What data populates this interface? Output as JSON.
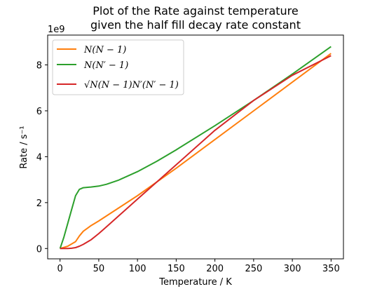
{
  "chart_data": {
    "type": "line",
    "title": "Plot of the Rate against temperature",
    "subtitle": "given the half fill decay rate constant",
    "xlabel": "Temperature / K",
    "ylabel": "Rate / s⁻¹",
    "y_scale_label": "1e9",
    "xlim": [
      -16,
      366
    ],
    "ylim": [
      -0.45,
      9.3
    ],
    "xticks": [
      0,
      50,
      100,
      150,
      200,
      250,
      300,
      350
    ],
    "xtick_labels": [
      "0",
      "50",
      "100",
      "150",
      "200",
      "250",
      "300",
      "350"
    ],
    "yticks": [
      0,
      2,
      4,
      6,
      8
    ],
    "ytick_labels": [
      "0",
      "2",
      "4",
      "6",
      "8"
    ],
    "grid": false,
    "legend_position": "upper-left",
    "series": [
      {
        "name": "N(N − 1)",
        "color": "#ff7f0e",
        "x": [
          0,
          10,
          20,
          25,
          30,
          40,
          50,
          75,
          100,
          150,
          200,
          250,
          300,
          350
        ],
        "y": [
          0,
          0.1,
          0.3,
          0.55,
          0.75,
          1.0,
          1.2,
          1.75,
          2.3,
          3.5,
          4.75,
          6.0,
          7.25,
          8.5
        ]
      },
      {
        "name": "N(N′ − 1)",
        "color": "#2ca02c",
        "x": [
          0,
          5,
          10,
          15,
          20,
          25,
          30,
          40,
          50,
          60,
          75,
          100,
          125,
          150,
          200,
          250,
          300,
          350
        ],
        "y": [
          0,
          0.5,
          1.1,
          1.7,
          2.3,
          2.58,
          2.65,
          2.68,
          2.72,
          2.8,
          2.97,
          3.35,
          3.8,
          4.3,
          5.35,
          6.45,
          7.6,
          8.8
        ]
      },
      {
        "name": "√N(N − 1)N′(N′ − 1)",
        "color": "#d62728",
        "x": [
          0,
          10,
          15,
          20,
          25,
          30,
          40,
          50,
          60,
          75,
          100,
          150,
          200,
          250,
          300,
          350
        ],
        "y": [
          0,
          0,
          0.01,
          0.04,
          0.1,
          0.18,
          0.38,
          0.65,
          0.95,
          1.4,
          2.15,
          3.65,
          5.15,
          6.45,
          7.55,
          8.4
        ]
      }
    ]
  }
}
